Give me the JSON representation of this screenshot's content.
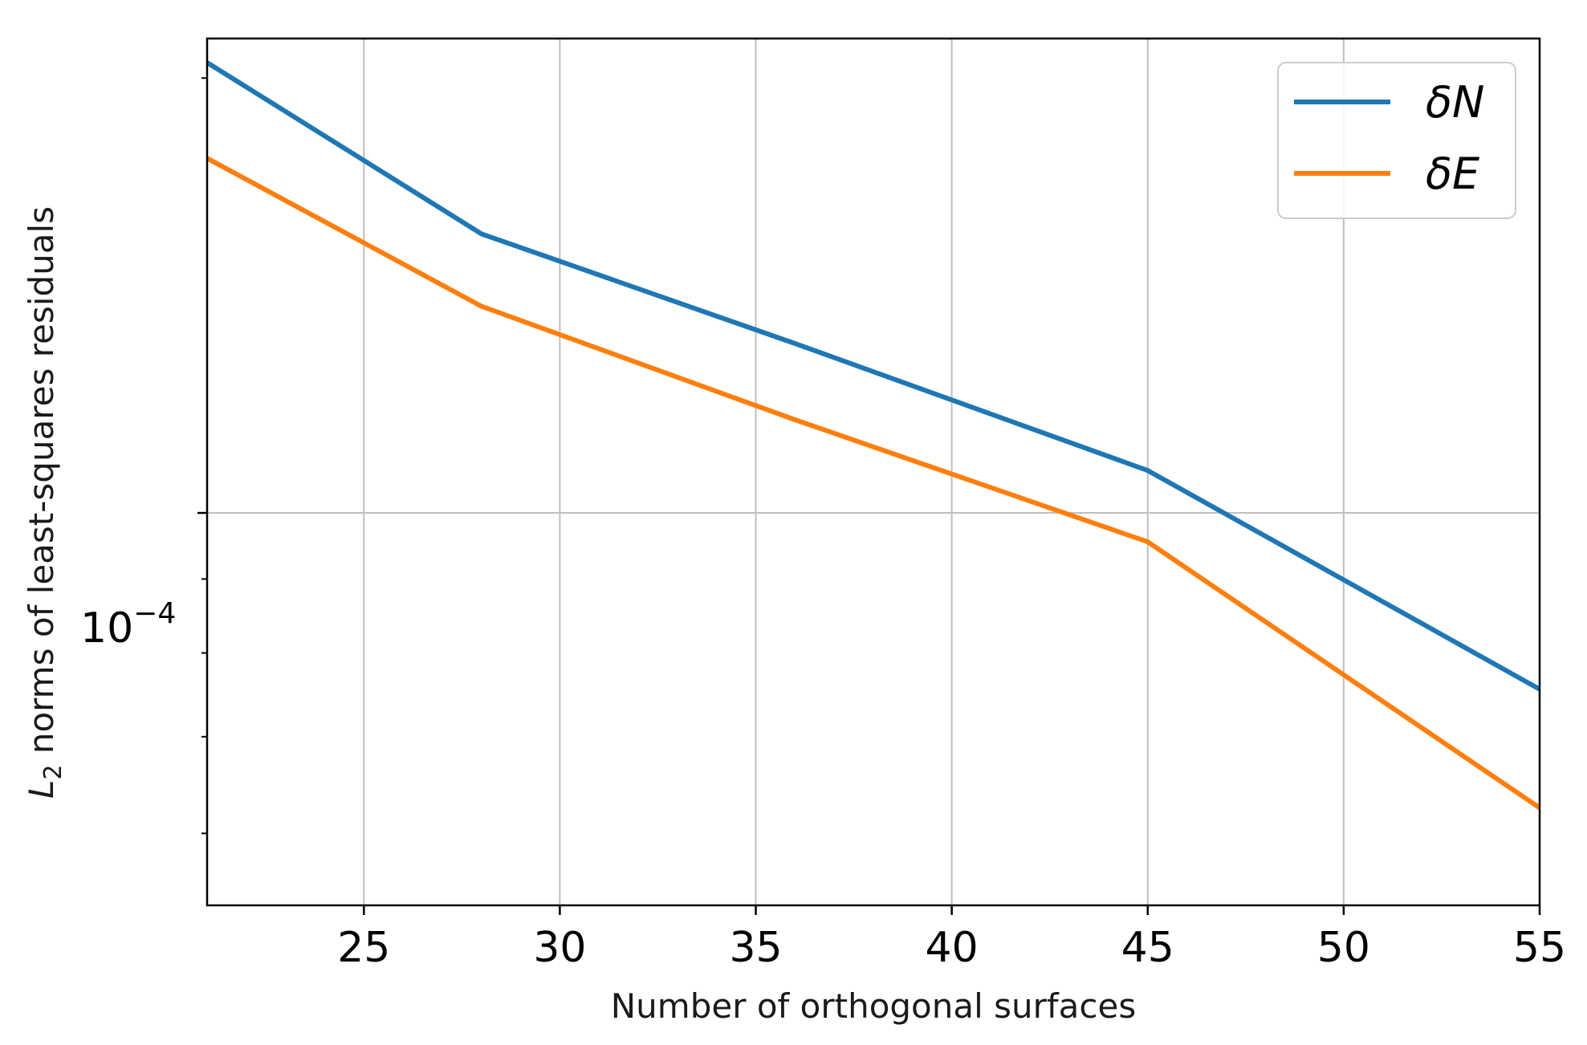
{
  "chart_data": {
    "type": "line",
    "title": "",
    "xlabel": "Number of orthogonal surfaces",
    "ylabel_main": "norms of least-squares residuals",
    "ylabel_symbol": "L",
    "ylabel_subscript": "2",
    "y_scale": "log",
    "xlim": [
      21,
      55
    ],
    "ylim": [
      5.35e-05,
      0.000213
    ],
    "x_ticks": [
      25,
      30,
      35,
      40,
      45,
      50,
      55
    ],
    "y_major_tick": {
      "value": 0.0001,
      "base": "10",
      "exponent": "−4"
    },
    "y_minor_ticks": [
      6e-05,
      7e-05,
      8e-05,
      9e-05,
      0.0002
    ],
    "grid": true,
    "legend_position": "upper right",
    "series": [
      {
        "name": "δN",
        "color": "#1f77b4",
        "x": [
          21,
          28,
          36,
          45,
          55
        ],
        "y": [
          0.000205,
          0.000156,
          0.000131,
          0.000107,
          7.55e-05
        ]
      },
      {
        "name": "δE",
        "color": "#ff7f0e",
        "x": [
          21,
          28,
          36,
          45,
          55
        ],
        "y": [
          0.000176,
          0.000139,
          0.000116,
          9.55e-05,
          6.25e-05
        ]
      }
    ]
  }
}
